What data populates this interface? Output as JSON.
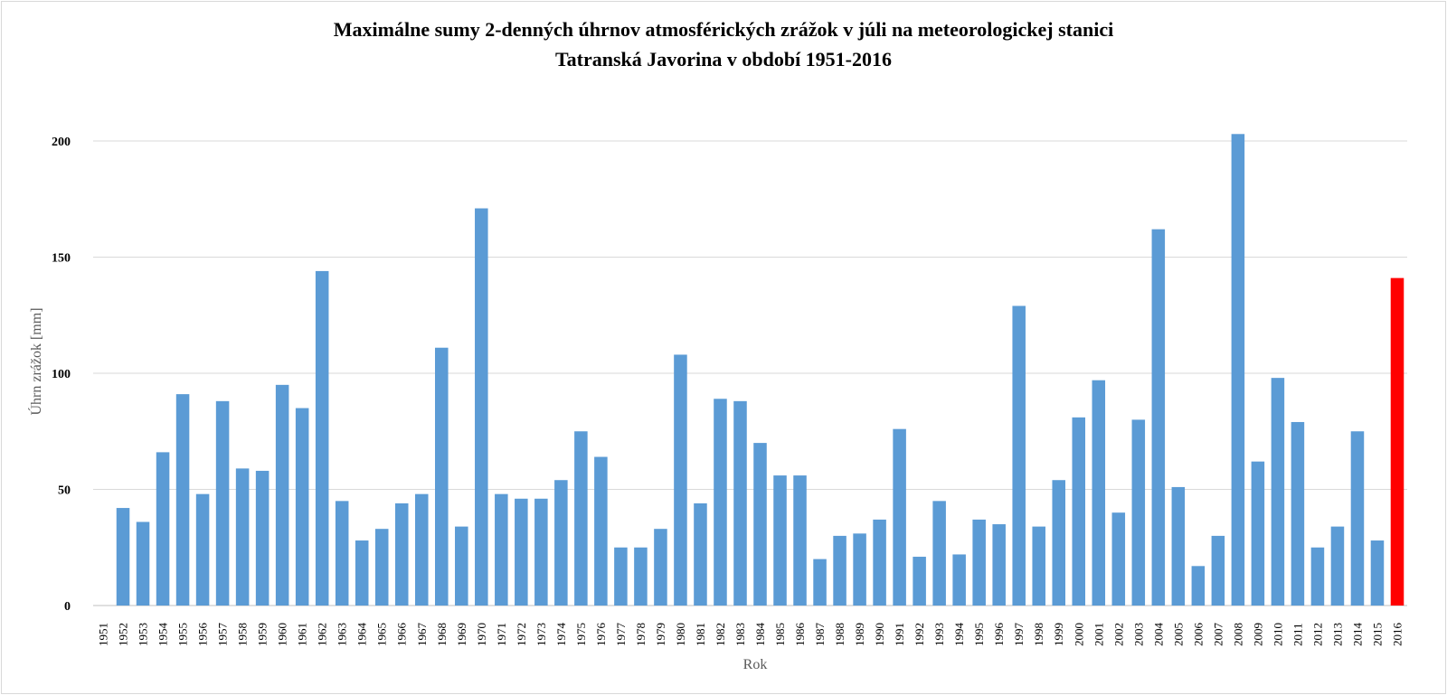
{
  "chart_data": {
    "type": "bar",
    "title_line1": "Maximálne sumy 2-denných úhrnov atmosférických zrážok v júli na meteorologickej stanici",
    "title_line2": "Tatranská Javorina v období 1951-2016",
    "xlabel": "Rok",
    "ylabel": "Úhrn zrážok [mm]",
    "ylim": [
      0,
      210
    ],
    "yticks": [
      0,
      50,
      100,
      150,
      200
    ],
    "grid": true,
    "categories": [
      "1951",
      "1952",
      "1953",
      "1954",
      "1955",
      "1956",
      "1957",
      "1958",
      "1959",
      "1960",
      "1961",
      "1962",
      "1963",
      "1964",
      "1965",
      "1966",
      "1967",
      "1968",
      "1969",
      "1970",
      "1971",
      "1972",
      "1973",
      "1974",
      "1975",
      "1976",
      "1977",
      "1978",
      "1979",
      "1980",
      "1981",
      "1982",
      "1983",
      "1984",
      "1985",
      "1986",
      "1987",
      "1988",
      "1989",
      "1990",
      "1991",
      "1992",
      "1993",
      "1994",
      "1995",
      "1996",
      "1997",
      "1998",
      "1999",
      "2000",
      "2001",
      "2002",
      "2003",
      "2004",
      "2005",
      "2006",
      "2007",
      "2008",
      "2009",
      "2010",
      "2011",
      "2012",
      "2013",
      "2014",
      "2015",
      "2016"
    ],
    "values": [
      0,
      42,
      36,
      66,
      91,
      48,
      88,
      59,
      58,
      95,
      85,
      144,
      45,
      28,
      33,
      44,
      48,
      111,
      34,
      171,
      48,
      46,
      46,
      54,
      75,
      64,
      25,
      25,
      33,
      108,
      44,
      89,
      88,
      70,
      56,
      56,
      20,
      30,
      31,
      37,
      76,
      21,
      45,
      22,
      37,
      35,
      129,
      34,
      54,
      81,
      97,
      40,
      80,
      162,
      51,
      17,
      30,
      203,
      62,
      98,
      79,
      25,
      34,
      75,
      28,
      141
    ],
    "bar_color": "#5b9bd5",
    "highlight_color": "#ff0000",
    "highlight_category": "2016"
  }
}
